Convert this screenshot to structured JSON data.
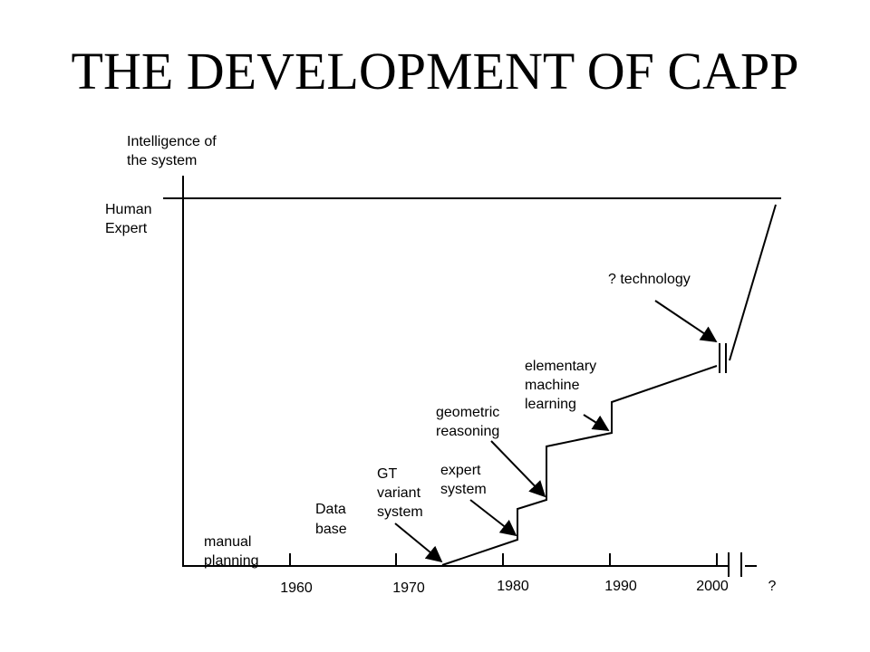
{
  "title": "THE DEVELOPMENT OF CAPP",
  "y_axis_label": [
    "Intelligence of",
    "the system"
  ],
  "human_expert_label": [
    "Human",
    "Expert"
  ],
  "x_ticks": [
    "1960",
    "1970",
    "1980",
    "1990",
    "2000",
    "?"
  ],
  "stages": [
    {
      "id": "manual-planning",
      "lines": [
        "manual",
        "planning"
      ]
    },
    {
      "id": "data-base",
      "lines": [
        "Data",
        "base"
      ]
    },
    {
      "id": "gt-variant-system",
      "lines": [
        "GT",
        "variant",
        "system"
      ]
    },
    {
      "id": "expert-system",
      "lines": [
        "expert",
        "system"
      ]
    },
    {
      "id": "geometric-reasoning",
      "lines": [
        "geometric",
        "reasoning"
      ]
    },
    {
      "id": "elementary-machine-learning",
      "lines": [
        "elementary",
        "machine",
        "learning"
      ]
    },
    {
      "id": "technology",
      "lines": [
        "? technology"
      ]
    }
  ]
}
